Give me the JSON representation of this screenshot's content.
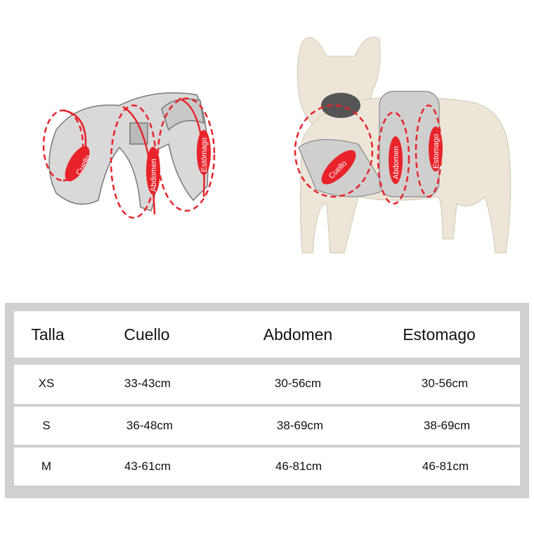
{
  "illustrations": {
    "harness_labels": [
      "Cuello",
      "Abdomen",
      "Estómago"
    ],
    "dog_labels": [
      "Cuello",
      "Abdomen",
      "Estomago"
    ],
    "accent_color": "#e8232a"
  },
  "table": {
    "headers": [
      "Talla",
      "Cuello",
      "Abdomen",
      "Estomago"
    ],
    "rows": [
      [
        "XS",
        "33-43cm",
        "30-56cm",
        "30-56cm"
      ],
      [
        "S",
        "36-48cm",
        "38-69cm",
        "38-69cm"
      ],
      [
        "M",
        "43-61cm",
        "46-81cm",
        "46-81cm"
      ]
    ]
  }
}
